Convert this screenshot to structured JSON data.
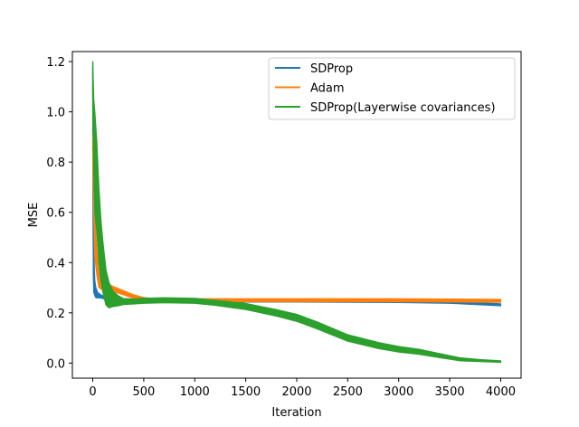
{
  "chart_data": {
    "type": "line",
    "title": "",
    "xlabel": "Iteration",
    "ylabel": "MSE",
    "xlim": [
      -200,
      4200
    ],
    "ylim": [
      -0.06,
      1.24
    ],
    "xticks": [
      0,
      500,
      1000,
      1500,
      2000,
      2500,
      3000,
      3500,
      4000
    ],
    "yticks": [
      0.0,
      0.2,
      0.4,
      0.6,
      0.8,
      1.0,
      1.2
    ],
    "ytick_labels": [
      "0.0",
      "0.2",
      "0.4",
      "0.6",
      "0.8",
      "1.0",
      "1.2"
    ],
    "grid": false,
    "legend_position": "top-right",
    "series": [
      {
        "name": "SDProp",
        "color": "#1f77b4",
        "x": [
          0,
          5,
          10,
          20,
          30,
          50,
          80,
          120,
          200,
          300,
          500,
          1000,
          2000,
          3000,
          3500,
          3800,
          4000
        ],
        "y": [
          1.18,
          0.5,
          0.36,
          0.3,
          0.28,
          0.27,
          0.265,
          0.26,
          0.252,
          0.249,
          0.247,
          0.247,
          0.247,
          0.245,
          0.242,
          0.236,
          0.232
        ],
        "band": [
          0.02,
          0.15,
          0.08,
          0.03,
          0.02,
          0.01,
          0.006,
          0.005,
          0.004,
          0.004,
          0.004,
          0.004,
          0.004,
          0.004,
          0.004,
          0.004,
          0.004
        ]
      },
      {
        "name": "Adam",
        "color": "#ff7f0e",
        "x": [
          0,
          10,
          20,
          40,
          60,
          100,
          150,
          200,
          300,
          400,
          500,
          600,
          800,
          1000,
          2000,
          3000,
          4000
        ],
        "y": [
          0.86,
          0.7,
          0.5,
          0.4,
          0.33,
          0.31,
          0.3,
          0.295,
          0.28,
          0.265,
          0.255,
          0.25,
          0.25,
          0.25,
          0.25,
          0.25,
          0.248
        ],
        "band": [
          0.05,
          0.12,
          0.08,
          0.05,
          0.03,
          0.02,
          0.015,
          0.01,
          0.008,
          0.007,
          0.006,
          0.006,
          0.006,
          0.006,
          0.006,
          0.006,
          0.006
        ]
      },
      {
        "name": "SDProp(Layerwise covariances)",
        "color": "#2ca02c",
        "x": [
          0,
          10,
          20,
          40,
          60,
          80,
          100,
          130,
          160,
          200,
          250,
          300,
          400,
          500,
          700,
          1000,
          1200,
          1500,
          1800,
          2000,
          2200,
          2500,
          2800,
          3000,
          3200,
          3400,
          3600,
          3800,
          4000
        ],
        "y": [
          1.1,
          0.9,
          0.8,
          0.7,
          0.55,
          0.45,
          0.38,
          0.3,
          0.27,
          0.255,
          0.248,
          0.245,
          0.245,
          0.248,
          0.25,
          0.248,
          0.24,
          0.225,
          0.2,
          0.18,
          0.15,
          0.1,
          0.07,
          0.055,
          0.045,
          0.03,
          0.015,
          0.01,
          0.006
        ],
        "band": [
          0.1,
          0.15,
          0.2,
          0.18,
          0.15,
          0.12,
          0.1,
          0.07,
          0.05,
          0.03,
          0.02,
          0.012,
          0.01,
          0.01,
          0.01,
          0.01,
          0.01,
          0.012,
          0.013,
          0.014,
          0.014,
          0.013,
          0.012,
          0.011,
          0.01,
          0.008,
          0.006,
          0.004,
          0.003
        ]
      }
    ]
  }
}
